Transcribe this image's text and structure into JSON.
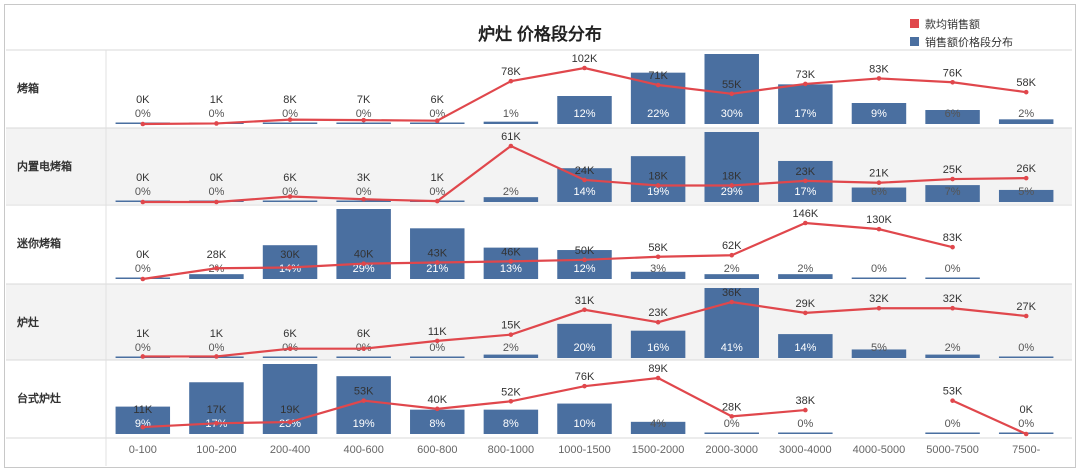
{
  "chart_data": {
    "type": "bar+line",
    "title": "炉灶 价格段分布",
    "legend": {
      "placement": "top-right",
      "entries": [
        {
          "name": "款均销售额",
          "color": "#e0474c",
          "kind": "line"
        },
        {
          "name": "销售额价格段分布",
          "color": "#4a6fa0",
          "kind": "bar"
        }
      ]
    },
    "categories": [
      "0-100",
      "100-200",
      "200-400",
      "400-600",
      "600-800",
      "800-1000",
      "1000-1500",
      "1500-2000",
      "2000-3000",
      "3000-4000",
      "4000-5000",
      "5000-7500",
      "7500-"
    ],
    "rows": [
      {
        "name": "烤箱",
        "avg_sales_k": [
          0,
          1,
          8,
          7,
          6,
          78,
          102,
          71,
          55,
          73,
          83,
          76,
          58
        ],
        "share_pct": [
          0,
          0,
          0,
          0,
          0,
          1,
          12,
          22,
          30,
          17,
          9,
          6,
          2
        ]
      },
      {
        "name": "内置电烤箱",
        "avg_sales_k": [
          0,
          0,
          6,
          3,
          1,
          61,
          24,
          18,
          18,
          23,
          21,
          25,
          26
        ],
        "share_pct": [
          0,
          0,
          0,
          0,
          0,
          2,
          14,
          19,
          29,
          17,
          6,
          7,
          5
        ]
      },
      {
        "name": "迷你烤箱",
        "avg_sales_k": [
          0,
          28,
          30,
          40,
          43,
          46,
          50,
          58,
          62,
          146,
          130,
          83,
          null
        ],
        "share_pct": [
          0,
          2,
          14,
          29,
          21,
          13,
          12,
          3,
          2,
          2,
          0,
          0,
          null
        ]
      },
      {
        "name": "炉灶",
        "avg_sales_k": [
          1,
          1,
          6,
          6,
          11,
          15,
          31,
          23,
          36,
          29,
          32,
          32,
          27
        ],
        "share_pct": [
          0,
          0,
          0,
          0,
          0,
          2,
          20,
          16,
          41,
          14,
          5,
          2,
          0
        ]
      },
      {
        "name": "台式炉灶",
        "avg_sales_k": [
          11,
          17,
          19,
          53,
          40,
          52,
          76,
          89,
          28,
          38,
          null,
          53,
          0
        ],
        "share_pct": [
          9,
          17,
          23,
          19,
          8,
          8,
          10,
          4,
          0,
          0,
          null,
          0,
          0
        ]
      }
    ],
    "value_suffix_line": "K",
    "value_suffix_bar": "%",
    "colors": {
      "bar": "#4a6fa0",
      "line": "#e0474c",
      "band": "#f3f3f3",
      "text": "#333333",
      "axis_text": "#666666"
    }
  }
}
